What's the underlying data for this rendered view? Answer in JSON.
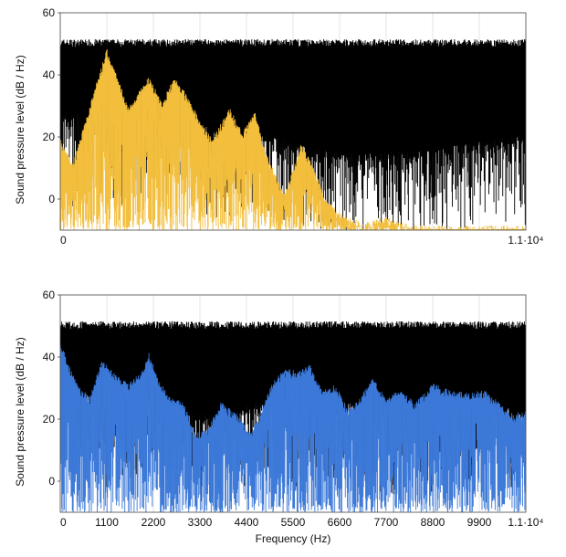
{
  "chart_data": [
    {
      "type": "area",
      "title": "",
      "xlabel": "",
      "ylabel": "Sound pressure level (dB / Hz)",
      "xlim": [
        0,
        11000
      ],
      "ylim": [
        -10,
        60
      ],
      "x_ticks": [
        "0",
        "1.1·10⁴"
      ],
      "y_ticks": [
        "60",
        "40",
        "20",
        "0"
      ],
      "y_tick_values": [
        60,
        40,
        20,
        0
      ],
      "grid": true,
      "series": [
        {
          "color": "#000000",
          "x": [
            0,
            1000,
            2000,
            3000,
            4000,
            5000,
            6000,
            7000,
            8000,
            9000,
            10000,
            11000
          ],
          "upper": [
            49,
            49,
            49,
            49,
            49,
            49,
            49,
            49,
            49,
            49,
            49,
            49
          ],
          "lower": [
            25,
            24,
            26,
            22,
            20,
            18,
            14,
            12,
            13,
            14,
            16,
            18
          ]
        },
        {
          "color": "#F2BE3C",
          "x": [
            0,
            300,
            600,
            900,
            1100,
            1300,
            1600,
            1900,
            2100,
            2400,
            2700,
            3000,
            3300,
            3600,
            4000,
            4300,
            4600,
            4900,
            5300,
            5700,
            6000,
            6300,
            6700,
            7200,
            7700,
            8000,
            8500,
            9000,
            11000
          ],
          "values": [
            18,
            10,
            24,
            38,
            47,
            40,
            28,
            34,
            38,
            30,
            38,
            32,
            24,
            18,
            28,
            20,
            27,
            12,
            0,
            17,
            8,
            -2,
            -7,
            -9,
            -7,
            -9,
            -10,
            -10,
            -10
          ]
        }
      ]
    },
    {
      "type": "area",
      "title": "",
      "xlabel": "Frequency (Hz)",
      "ylabel": "Sound pressure level (dB / Hz)",
      "xlim": [
        0,
        11000
      ],
      "ylim": [
        -10,
        60
      ],
      "x_ticks": [
        "0",
        "1100",
        "2200",
        "3300",
        "4400",
        "5500",
        "6600",
        "7700",
        "8800",
        "9900",
        "1.1·10⁴"
      ],
      "x_tick_values": [
        0,
        1100,
        2200,
        3300,
        4400,
        5500,
        6600,
        7700,
        8800,
        9900,
        11000
      ],
      "y_ticks": [
        "60",
        "40",
        "20",
        "0"
      ],
      "y_tick_values": [
        60,
        40,
        20,
        0
      ],
      "grid": true,
      "series": [
        {
          "color": "#000000",
          "x": [
            0,
            1000,
            2000,
            3000,
            4000,
            5000,
            6000,
            7000,
            8000,
            9000,
            10000,
            11000
          ],
          "upper": [
            49,
            49,
            49,
            49,
            49,
            49,
            49,
            49,
            49,
            49,
            49,
            49
          ],
          "lower": [
            30,
            25,
            28,
            20,
            18,
            26,
            25,
            24,
            22,
            22,
            24,
            20
          ]
        },
        {
          "color": "#3B78D8",
          "x": [
            0,
            150,
            400,
            700,
            1000,
            1300,
            1600,
            1900,
            2100,
            2300,
            2600,
            2900,
            3200,
            3500,
            3800,
            4200,
            4500,
            4700,
            5000,
            5300,
            5600,
            5900,
            6200,
            6500,
            6800,
            7100,
            7400,
            7700,
            8000,
            8400,
            8800,
            9200,
            9600,
            10000,
            10400,
            10700,
            11000
          ],
          "values": [
            44,
            38,
            30,
            26,
            38,
            33,
            30,
            34,
            40,
            32,
            26,
            24,
            14,
            16,
            24,
            20,
            14,
            20,
            30,
            35,
            34,
            36,
            28,
            30,
            22,
            26,
            32,
            25,
            28,
            24,
            30,
            28,
            27,
            28,
            24,
            20,
            21
          ]
        }
      ]
    }
  ]
}
